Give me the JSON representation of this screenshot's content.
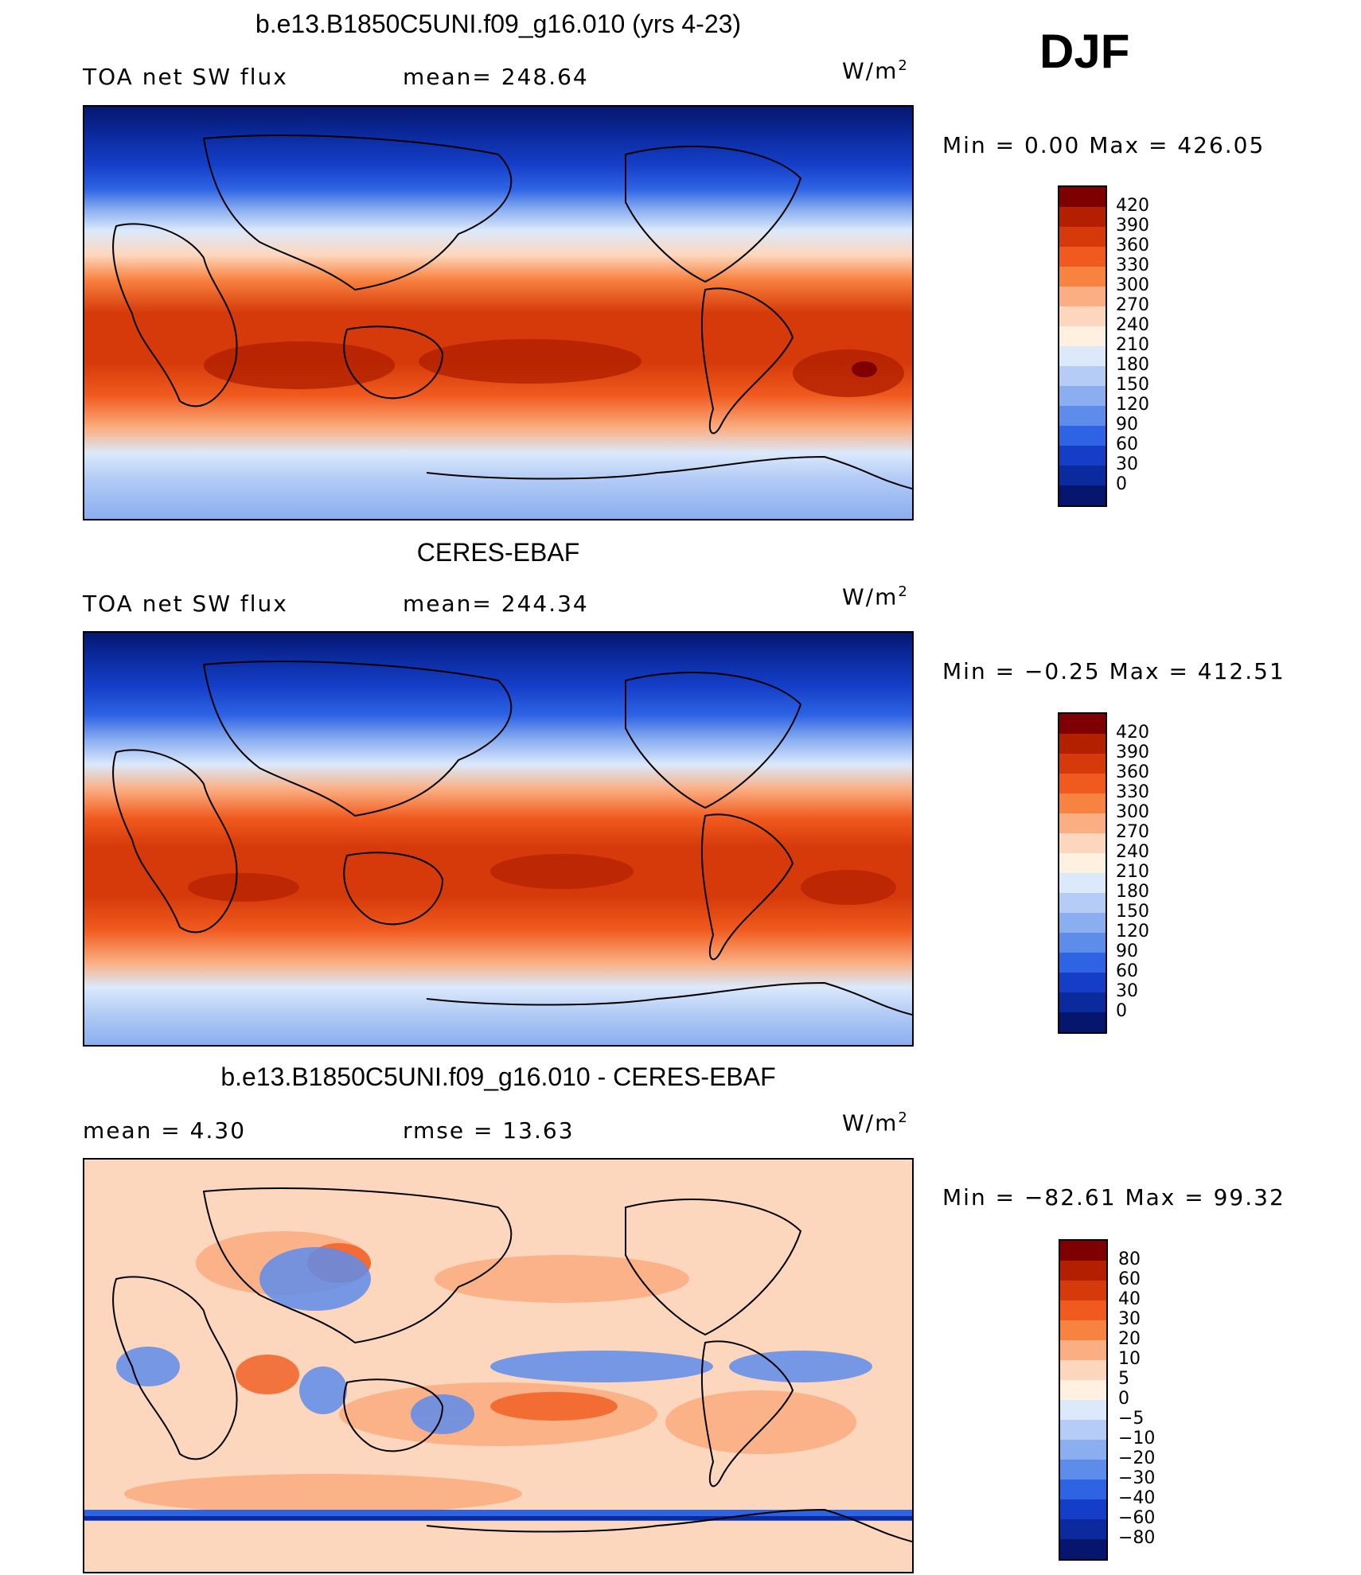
{
  "season": "DJF",
  "panels": [
    {
      "title": "b.e13.B1850C5UNI.f09_g16.010 (yrs 4-23)",
      "left_label": "TOA net SW flux",
      "mid_label": "mean= 248.64",
      "units": "W/m",
      "units_sup": "2",
      "minmax": "Min =    0.00 Max = 426.05",
      "colorbar": {
        "labels": [
          "420",
          "390",
          "360",
          "330",
          "300",
          "270",
          "240",
          "210",
          "180",
          "150",
          "120",
          "90",
          "60",
          "30",
          "0"
        ],
        "colors": [
          "#7f0000",
          "#b22000",
          "#d63a0a",
          "#f05a1e",
          "#f8823f",
          "#fbae82",
          "#fdd7bd",
          "#fff0e0",
          "#dbe9fb",
          "#b4ccf6",
          "#8aaef0",
          "#5e8ceb",
          "#2e63e4",
          "#153ec8",
          "#0b2a9e",
          "#06166e"
        ]
      }
    },
    {
      "title": "CERES-EBAF",
      "left_label": "TOA net SW flux",
      "mid_label": "mean= 244.34",
      "units": "W/m",
      "units_sup": "2",
      "minmax": "Min =  −0.25 Max = 412.51",
      "colorbar": {
        "labels": [
          "420",
          "390",
          "360",
          "330",
          "300",
          "270",
          "240",
          "210",
          "180",
          "150",
          "120",
          "90",
          "60",
          "30",
          "0"
        ],
        "colors": [
          "#7f0000",
          "#b22000",
          "#d63a0a",
          "#f05a1e",
          "#f8823f",
          "#fbae82",
          "#fdd7bd",
          "#fff0e0",
          "#dbe9fb",
          "#b4ccf6",
          "#8aaef0",
          "#5e8ceb",
          "#2e63e4",
          "#153ec8",
          "#0b2a9e",
          "#06166e"
        ]
      }
    },
    {
      "title": "b.e13.B1850C5UNI.f09_g16.010 - CERES-EBAF",
      "left_label": "mean =    4.30",
      "mid_label": "rmse =   13.63",
      "units": "W/m",
      "units_sup": "2",
      "minmax": "Min = −82.61 Max =  99.32",
      "colorbar": {
        "labels": [
          "80",
          "60",
          "40",
          "30",
          "20",
          "10",
          "5",
          "0",
          "−5",
          "−10",
          "−20",
          "−30",
          "−40",
          "−60",
          "−80"
        ],
        "colors": [
          "#7f0000",
          "#b22000",
          "#d63a0a",
          "#f05a1e",
          "#f8823f",
          "#fbae82",
          "#fdd7bd",
          "#fff0e0",
          "#dbe9fb",
          "#b4ccf6",
          "#8aaef0",
          "#5e8ceb",
          "#2e63e4",
          "#153ec8",
          "#0b2a9e",
          "#06166e"
        ]
      }
    }
  ]
}
